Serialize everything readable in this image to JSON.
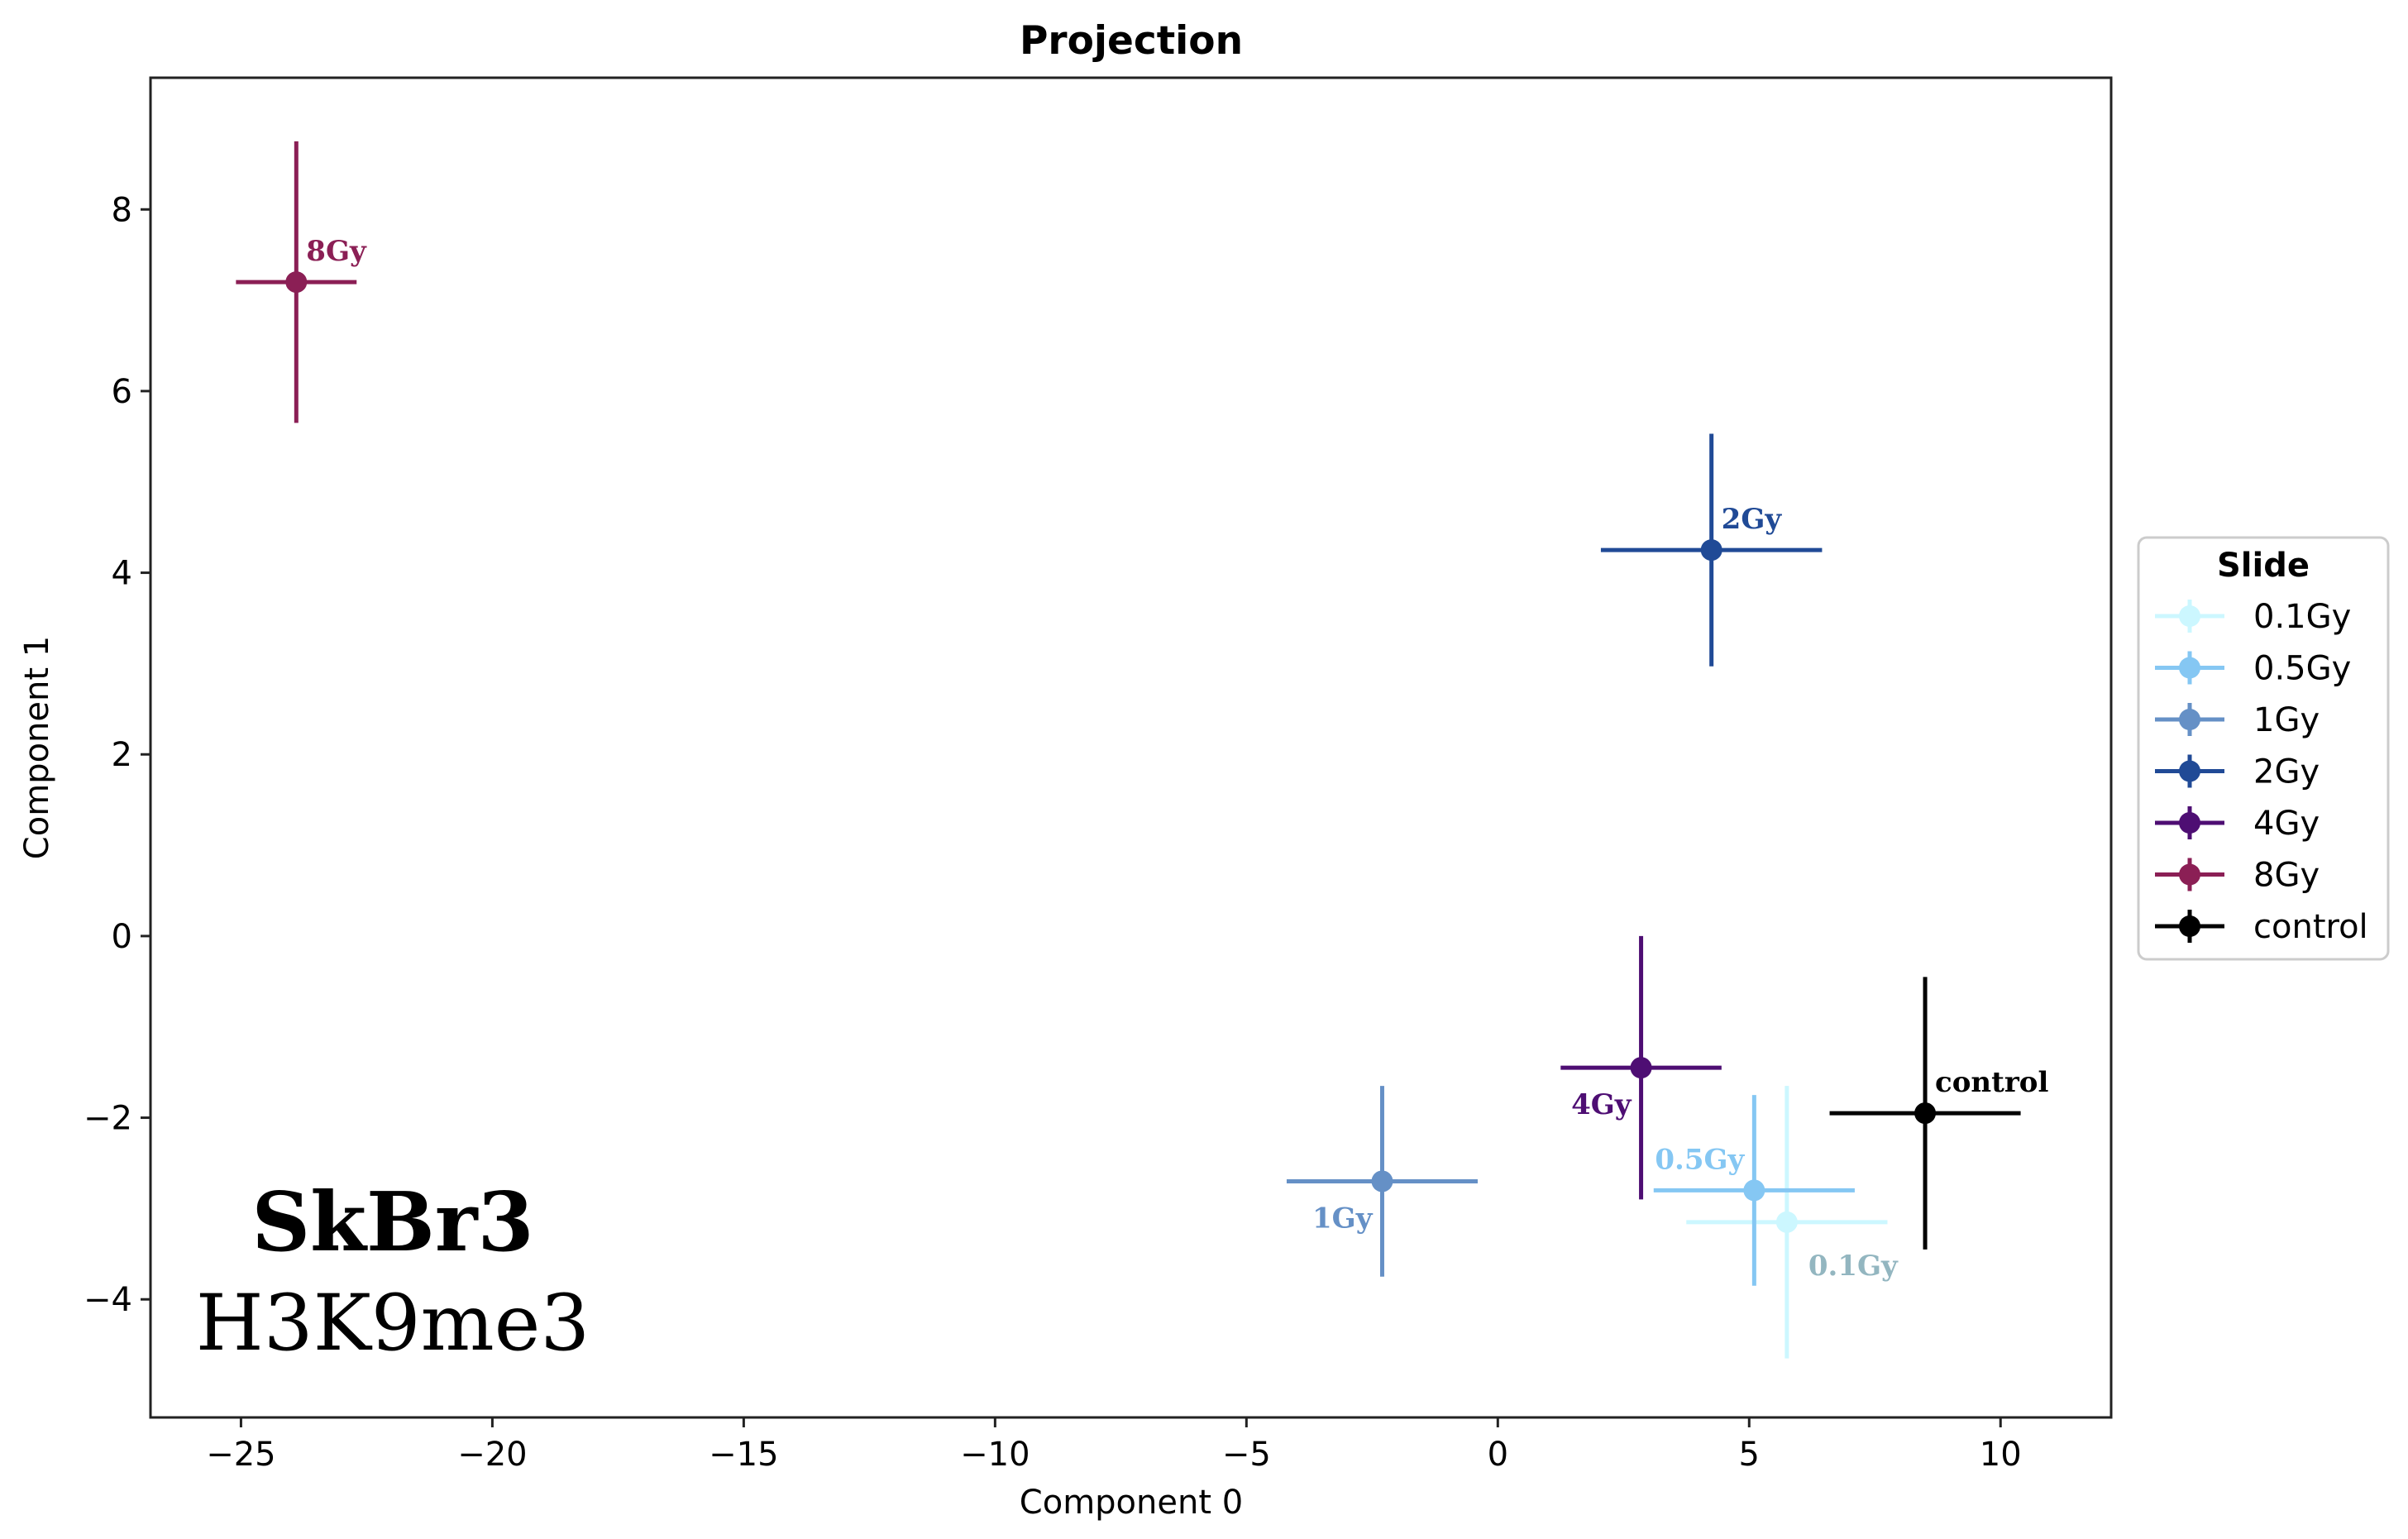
{
  "chart_data": {
    "type": "scatter",
    "title": "Projection",
    "xlabel": "Component 0",
    "ylabel": "Component 1",
    "xlim": [
      -26.8,
      12.2
    ],
    "ylim": [
      -5.3,
      9.45
    ],
    "xticks": [
      -25,
      -20,
      -15,
      -10,
      -5,
      0,
      5,
      10
    ],
    "yticks": [
      -4,
      -2,
      0,
      2,
      4,
      6,
      8
    ],
    "xtick_labels": [
      "−25",
      "−20",
      "−15",
      "−10",
      "−5",
      "0",
      "5",
      "10"
    ],
    "ytick_labels": [
      "−4",
      "−2",
      "0",
      "2",
      "4",
      "6",
      "8"
    ],
    "grid": false,
    "legend": {
      "title": "Slide",
      "location": "outside-right"
    },
    "series": [
      {
        "name": "0.1Gy",
        "color": "#ccf7ff",
        "label_color": "#93b6c0",
        "x": 5.75,
        "y": -3.15,
        "xerr": 2.0,
        "yerr": 1.5,
        "label_offset": "bottom-right"
      },
      {
        "name": "0.5Gy",
        "color": "#85c7f3",
        "label_color": "#85c7f3",
        "x": 5.1,
        "y": -2.8,
        "xerr": 2.0,
        "yerr": 1.05,
        "label_offset": "top-left"
      },
      {
        "name": "1Gy",
        "color": "#6590c6",
        "label_color": "#6590c6",
        "x": -2.3,
        "y": -2.7,
        "xerr": 1.9,
        "yerr": 1.05,
        "label_offset": "bottom-left"
      },
      {
        "name": "2Gy",
        "color": "#204a96",
        "label_color": "#204a96",
        "x": 4.25,
        "y": 4.25,
        "xerr": 2.2,
        "yerr": 1.28,
        "label_offset": "top-right"
      },
      {
        "name": "4Gy",
        "color": "#4e0e73",
        "label_color": "#4e0e73",
        "x": 2.85,
        "y": -1.45,
        "xerr": 1.6,
        "yerr": 1.45,
        "label_offset": "bottom-left"
      },
      {
        "name": "8Gy",
        "color": "#8b1f55",
        "label_color": "#8b1f55",
        "x": -23.9,
        "y": 7.2,
        "xerr": 1.2,
        "yerr": 1.55,
        "label_offset": "top-right"
      },
      {
        "name": "control",
        "color": "#000000",
        "label_color": "#000000",
        "x": 8.5,
        "y": -1.95,
        "xerr": 1.9,
        "yerr": 1.5,
        "label_offset": "top-right"
      }
    ],
    "annotations": [
      {
        "text": "SkBr3",
        "weight": "bold"
      },
      {
        "text": "H3K9me3",
        "weight": "normal"
      }
    ]
  }
}
